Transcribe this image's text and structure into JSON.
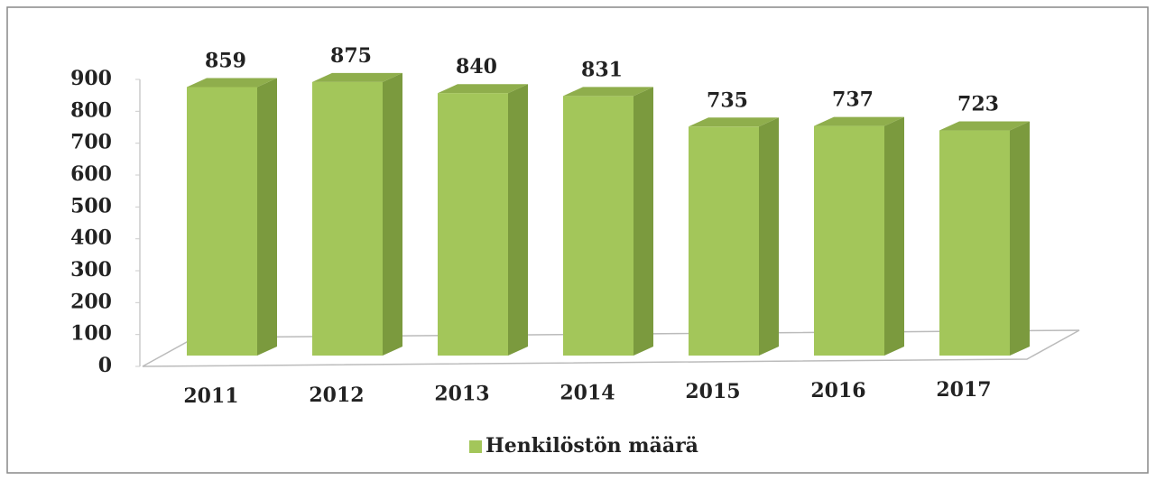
{
  "chart_data": {
    "type": "bar",
    "categories": [
      "2011",
      "2012",
      "2013",
      "2014",
      "2015",
      "2016",
      "2017"
    ],
    "series": [
      {
        "name": "Henkilöstön määrä",
        "color": "#a3c65a",
        "values": [
          859,
          875,
          840,
          831,
          735,
          737,
          723
        ]
      }
    ],
    "ylim": [
      0,
      900
    ],
    "yticks": [
      0,
      100,
      200,
      300,
      400,
      500,
      600,
      700,
      800,
      900
    ],
    "grid": false,
    "legend": "bottom"
  }
}
